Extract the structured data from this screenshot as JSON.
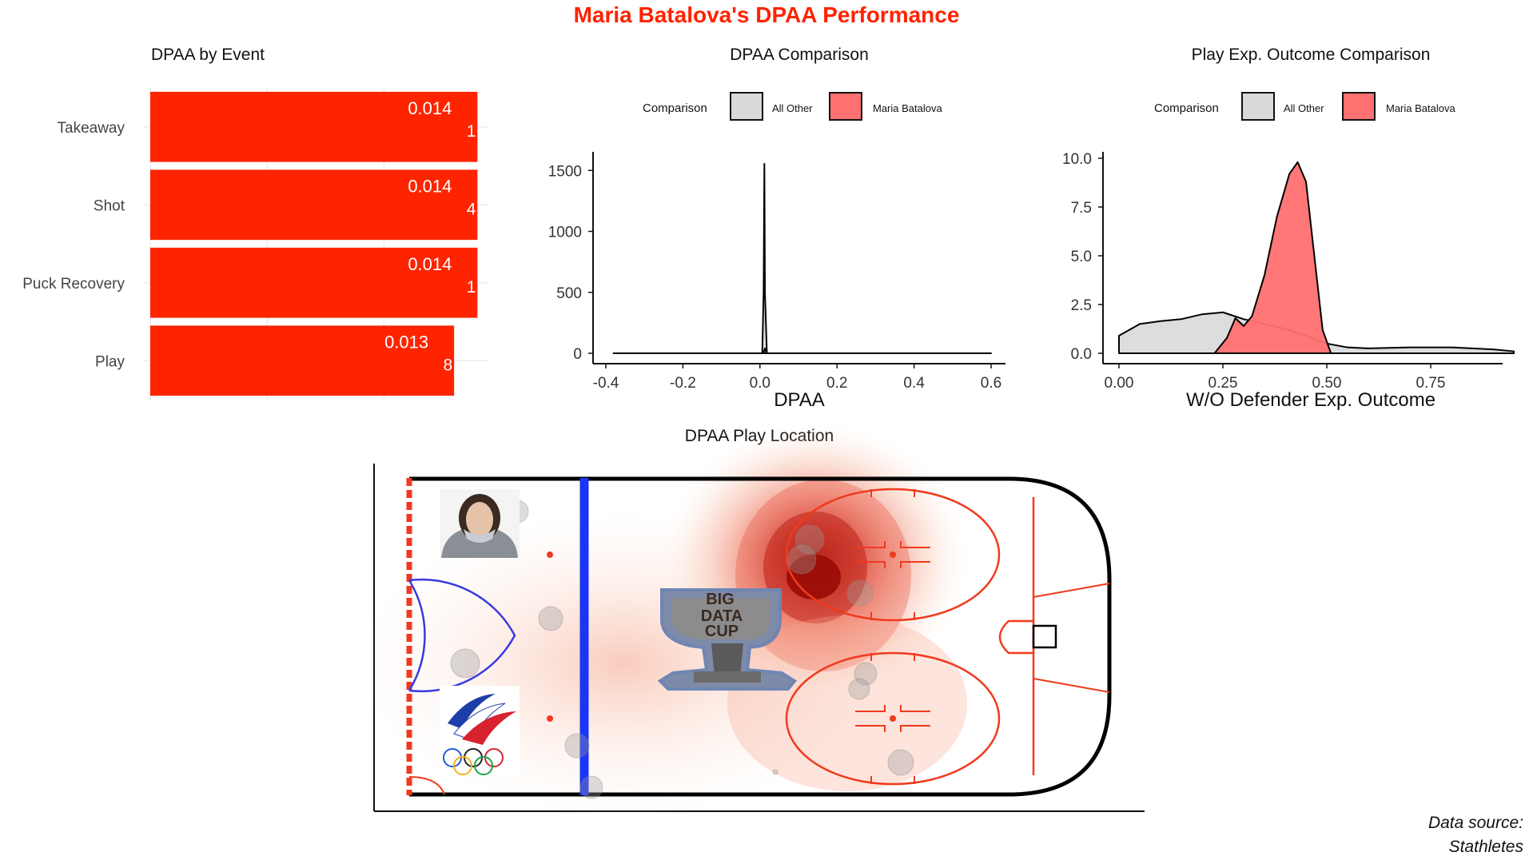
{
  "title": "Maria Batalova's DPAA Performance",
  "source_line1": "Data source:",
  "source_line2": "Stathletes",
  "colors": {
    "accent_red": "#ff2200",
    "bar_red": "#ff2400",
    "salmon": "#ff7070",
    "gray_fill": "#d9d9d9",
    "blue_line": "#1a35f5",
    "rink_red": "#f03a1e"
  },
  "chart_data": [
    {
      "type": "bar",
      "title": "DPAA by Event",
      "orientation": "horizontal",
      "categories": [
        "Takeaway",
        "Shot",
        "Puck Recovery",
        "Play"
      ],
      "values": [
        0.014,
        0.014,
        0.014,
        0.013
      ],
      "value_labels": [
        "0.014",
        "0.014",
        "0.014",
        "0.013"
      ],
      "counts": [
        "1",
        "4",
        "1",
        "8"
      ],
      "xlim": [
        0,
        0.0145
      ],
      "grid": true
    },
    {
      "type": "area",
      "title": "DPAA Comparison",
      "xlabel": "DPAA",
      "ylabel": "",
      "legend_title": "Comparison",
      "legend_position": "top",
      "xlim": [
        -0.4,
        0.6
      ],
      "ylim": [
        0,
        1600
      ],
      "x_ticks": [
        "-0.4",
        "-0.2",
        "0.0",
        "0.2",
        "0.4",
        "0.6"
      ],
      "y_ticks": [
        "0",
        "500",
        "1000",
        "1500"
      ],
      "series": [
        {
          "name": "All Other",
          "x": [
            -0.38,
            0.006,
            0.0095,
            0.0115,
            0.013,
            0.018,
            0.6
          ],
          "y": [
            0,
            0,
            500,
            1555,
            500,
            0,
            0
          ]
        },
        {
          "name": "Maria Batalova",
          "x": [
            0.008,
            0.0115,
            0.013,
            0.0145,
            0.018
          ],
          "y": [
            0,
            25,
            40,
            25,
            0
          ]
        }
      ]
    },
    {
      "type": "area",
      "title": "Play Exp. Outcome Comparison",
      "xlabel": "W/O Defender Exp. Outcome",
      "ylabel": "",
      "legend_title": "Comparison",
      "legend_position": "top",
      "xlim": [
        0,
        1
      ],
      "ylim": [
        0,
        10
      ],
      "x_ticks": [
        "0.00",
        "0.25",
        "0.50",
        "0.75"
      ],
      "y_ticks": [
        "0.0",
        "2.5",
        "5.0",
        "7.5",
        "10.0"
      ],
      "series": [
        {
          "name": "All Other",
          "x": [
            0.0,
            0.05,
            0.1,
            0.15,
            0.2,
            0.25,
            0.3,
            0.35,
            0.4,
            0.45,
            0.5,
            0.55,
            0.6,
            0.7,
            0.8,
            0.9,
            0.95
          ],
          "y": [
            0.9,
            1.5,
            1.65,
            1.75,
            2.0,
            2.1,
            1.75,
            1.5,
            1.25,
            0.9,
            0.5,
            0.3,
            0.25,
            0.3,
            0.3,
            0.2,
            0.1
          ]
        },
        {
          "name": "Maria Batalova",
          "x": [
            0.23,
            0.26,
            0.28,
            0.3,
            0.32,
            0.35,
            0.38,
            0.41,
            0.43,
            0.45,
            0.47,
            0.49,
            0.51
          ],
          "y": [
            0.0,
            0.8,
            1.8,
            1.4,
            1.9,
            4.0,
            7.0,
            9.2,
            9.8,
            8.8,
            5.0,
            1.2,
            0.0
          ]
        }
      ]
    },
    {
      "type": "heatmap",
      "title": "DPAA Play Location",
      "logo_text": [
        "BIG",
        "DATA",
        "CUP"
      ]
    }
  ]
}
